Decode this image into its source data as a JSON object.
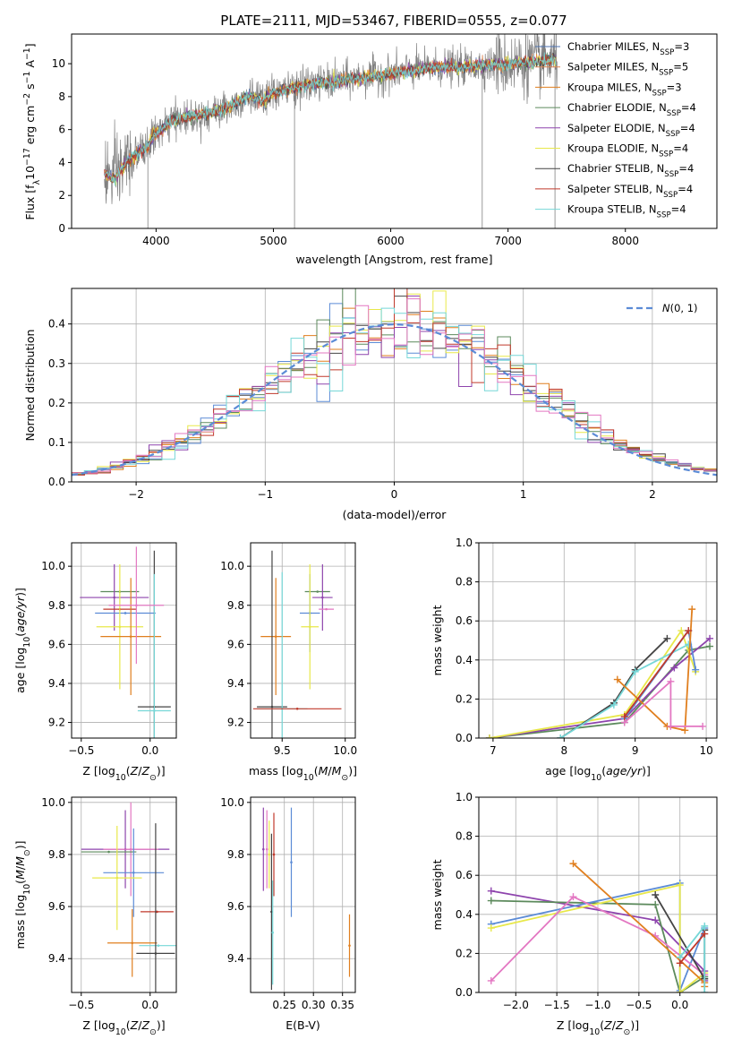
{
  "figure": {
    "title": "PLATE=2111, MJD=53467, FIBERID=0555, z=0.077"
  },
  "chart_data": [
    {
      "id": "spectrum",
      "type": "line",
      "xlabel": "wavelength [Angstrom, rest frame]",
      "ylabel": "Flux [f_λ10^-17 erg cm^-2 s^-1 A^-1]",
      "xlim": [
        3280,
        8780
      ],
      "ylim": [
        0,
        11.8
      ],
      "xticks": [
        4000,
        5000,
        6000,
        7000,
        8000
      ],
      "yticks": [
        0,
        2,
        4,
        6,
        8,
        10
      ],
      "grid": false,
      "legend_position": "top-right",
      "continuum": {
        "x": [
          3560,
          3650,
          3750,
          3850,
          3930,
          3980,
          4050,
          4150,
          4300,
          4450,
          4600,
          4800,
          4900,
          5000,
          5200,
          5400,
          5600,
          5800,
          6000,
          6200,
          6400,
          6600,
          6800,
          7000,
          7200,
          7350
        ],
        "y": [
          3.4,
          3.0,
          4.0,
          4.6,
          4.9,
          5.7,
          6.0,
          6.6,
          6.8,
          7.0,
          7.3,
          8.1,
          7.7,
          8.2,
          8.6,
          8.8,
          9.0,
          9.2,
          9.4,
          9.6,
          9.8,
          9.8,
          9.9,
          10.0,
          10.1,
          10.2
        ]
      },
      "data_noise_sigma": 0.55,
      "data_spikes": [
        {
          "x": 3930,
          "y": 0
        },
        {
          "x": 5180,
          "y": 0
        },
        {
          "x": 6780,
          "y": 0
        },
        {
          "x": 7400,
          "y": 0
        },
        {
          "x": 7300,
          "y": 11.8
        },
        {
          "x": 7150,
          "y": 11.8
        },
        {
          "x": 6900,
          "y": 11.6
        }
      ],
      "series": [
        {
          "name": "Chabrier MILES",
          "nssp": "3",
          "color": "#4c72b0"
        },
        {
          "name": "Salpeter MILES",
          "nssp": "5",
          "color": "#dd8452"
        },
        {
          "name": "Kroupa MILES",
          "nssp": "3",
          "color": "#e07f1f"
        },
        {
          "name": "Chabrier ELODIE",
          "nssp": "4",
          "color": "#5c8a5c"
        },
        {
          "name": "Salpeter ELODIE",
          "nssp": "4",
          "color": "#8e44ad"
        },
        {
          "name": "Kroupa ELODIE",
          "nssp": "4",
          "color": "#e8e84a"
        },
        {
          "name": "Chabrier STELIB",
          "nssp": "4",
          "color": "#444444"
        },
        {
          "name": "Salpeter STELIB",
          "nssp": "4",
          "color": "#c0392b"
        },
        {
          "name": "Kroupa STELIB",
          "nssp": "4",
          "color": "#76d7d7"
        }
      ]
    },
    {
      "id": "residuals",
      "type": "bar",
      "xlabel": "(data-model)/error",
      "ylabel": "Normed distribution",
      "xlim": [
        -2.5,
        2.5
      ],
      "ylim": [
        0,
        0.49
      ],
      "xticks": [
        -2,
        -1,
        0,
        1,
        2
      ],
      "yticks": [
        0.0,
        0.1,
        0.2,
        0.3,
        0.4
      ],
      "grid": true,
      "legend_position": "top-right",
      "legend_label": "N(0,1)",
      "reference_curve": {
        "name": "N(0,1)",
        "color": "#5b8bd6",
        "mean": 0,
        "sigma": 1
      },
      "bin_width": 0.1,
      "bin_start": -2.5,
      "series_colors": [
        "#5b8bd6",
        "#e07f1f",
        "#5c8a5c",
        "#8e44ad",
        "#e8e84a",
        "#444444",
        "#c0392b",
        "#76d7d7",
        "#e377c2"
      ]
    },
    {
      "id": "age_vs_Z",
      "type": "scatter",
      "xlabel": "Z [log10(Z/Z_⊙)]",
      "ylabel": "age  [log10(age/yr)]",
      "xlim": [
        -0.57,
        0.19
      ],
      "ylim": [
        9.12,
        10.12
      ],
      "xticks": [
        -0.5,
        0.0
      ],
      "yticks": [
        9.2,
        9.4,
        9.6,
        9.8,
        10.0
      ],
      "grid": true,
      "points": [
        {
          "x": -0.22,
          "y": 9.87,
          "xerr": 0.14,
          "yerr": 0.0,
          "color": "#5c8a5c"
        },
        {
          "x": -0.26,
          "y": 9.84,
          "xerr": 0.25,
          "yerr": 0.17,
          "color": "#8e44ad"
        },
        {
          "x": -0.22,
          "y": 9.78,
          "xerr": 0.12,
          "yerr": 0.0,
          "color": "#c0392b"
        },
        {
          "x": -0.18,
          "y": 9.76,
          "xerr": 0.22,
          "yerr": 0.0,
          "color": "#5b8bd6"
        },
        {
          "x": -0.22,
          "y": 9.69,
          "xerr": 0.17,
          "yerr": 0.32,
          "color": "#e8e84a"
        },
        {
          "x": -0.14,
          "y": 9.64,
          "xerr": 0.22,
          "yerr": 0.3,
          "color": "#e07f1f"
        },
        {
          "x": 0.03,
          "y": 9.28,
          "xerr": 0.12,
          "yerr": 0.8,
          "color": "#444444"
        },
        {
          "x": 0.03,
          "y": 9.26,
          "xerr": 0.12,
          "yerr": 0.7,
          "color": "#76d7d7"
        },
        {
          "x": -0.1,
          "y": 9.8,
          "xerr": 0.2,
          "yerr": 0.3,
          "color": "#e377c2"
        }
      ]
    },
    {
      "id": "age_vs_mass",
      "type": "scatter",
      "xlabel": "mass [log10(M/M_⊙)]",
      "ylabel": "",
      "xlim": [
        9.25,
        10.08
      ],
      "ylim": [
        9.12,
        10.12
      ],
      "xticks": [
        9.5,
        10.0
      ],
      "yticks": [
        9.2,
        9.4,
        9.6,
        9.8,
        10.0
      ],
      "grid": true,
      "points": [
        {
          "x": 9.78,
          "y": 9.87,
          "xerr": 0.1,
          "yerr": 0.0,
          "color": "#5c8a5c"
        },
        {
          "x": 9.82,
          "y": 9.84,
          "xerr": 0.08,
          "yerr": 0.17,
          "color": "#8e44ad"
        },
        {
          "x": 9.85,
          "y": 9.78,
          "xerr": 0.06,
          "yerr": 0.0,
          "color": "#e377c2"
        },
        {
          "x": 9.72,
          "y": 9.76,
          "xerr": 0.08,
          "yerr": 0.2,
          "color": "#5b8bd6"
        },
        {
          "x": 9.72,
          "y": 9.69,
          "xerr": 0.07,
          "yerr": 0.32,
          "color": "#e8e84a"
        },
        {
          "x": 9.45,
          "y": 9.64,
          "xerr": 0.12,
          "yerr": 0.3,
          "color": "#e07f1f"
        },
        {
          "x": 9.42,
          "y": 9.28,
          "xerr": 0.12,
          "yerr": 0.8,
          "color": "#444444"
        },
        {
          "x": 9.5,
          "y": 9.27,
          "xerr": 0.2,
          "yerr": 0.7,
          "color": "#76d7d7"
        },
        {
          "x": 9.62,
          "y": 9.27,
          "xerr": 0.35,
          "yerr": 0.0,
          "color": "#c0392b"
        }
      ]
    },
    {
      "id": "weight_vs_age",
      "type": "line",
      "xlabel": "age  [log10(age/yr)]",
      "ylabel": "mass weight",
      "xlim": [
        6.8,
        10.15
      ],
      "ylim": [
        0,
        1.0
      ],
      "xticks": [
        7,
        8,
        9,
        10
      ],
      "yticks": [
        0.0,
        0.2,
        0.4,
        0.6,
        0.8,
        1.0
      ],
      "grid": true,
      "series": [
        {
          "color": "#5c8a5c",
          "x": [
            6.95,
            8.85,
            9.75,
            10.05
          ],
          "y": [
            0.0,
            0.08,
            0.45,
            0.47
          ]
        },
        {
          "color": "#8e44ad",
          "x": [
            6.95,
            8.85,
            9.55,
            10.05
          ],
          "y": [
            0.0,
            0.1,
            0.36,
            0.51
          ]
        },
        {
          "color": "#e8e84a",
          "x": [
            6.95,
            8.85,
            9.65,
            9.85
          ],
          "y": [
            0.0,
            0.12,
            0.55,
            0.34
          ]
        },
        {
          "color": "#444444",
          "x": [
            7.95,
            8.7,
            9.0,
            9.45
          ],
          "y": [
            0.0,
            0.18,
            0.35,
            0.51
          ]
        },
        {
          "color": "#76d7d7",
          "x": [
            7.95,
            8.7,
            9.0,
            9.75
          ],
          "y": [
            0.0,
            0.17,
            0.34,
            0.48
          ]
        },
        {
          "color": "#5b8bd6",
          "x": [
            8.85,
            9.75,
            9.85
          ],
          "y": [
            0.1,
            0.55,
            0.35
          ]
        },
        {
          "color": "#e07f1f",
          "x": [
            8.75,
            9.45,
            9.7,
            9.8
          ],
          "y": [
            0.3,
            0.06,
            0.04,
            0.66
          ]
        },
        {
          "color": "#e377c2",
          "x": [
            8.85,
            9.5,
            9.5,
            9.95
          ],
          "y": [
            0.08,
            0.29,
            0.06,
            0.06
          ]
        },
        {
          "color": "#c0392b",
          "x": [
            8.85,
            9.75
          ],
          "y": [
            0.11,
            0.55
          ]
        }
      ]
    },
    {
      "id": "mass_vs_Z",
      "type": "scatter",
      "xlabel": "Z [log10(Z/Z_⊙)]",
      "ylabel": "mass [log10(M/M_⊙)]",
      "xlim": [
        -0.57,
        0.19
      ],
      "ylim": [
        9.27,
        10.02
      ],
      "xticks": [
        -0.5,
        0.0
      ],
      "yticks": [
        9.4,
        9.6,
        9.8,
        10.0
      ],
      "grid": true,
      "points": [
        {
          "x": -0.18,
          "y": 9.82,
          "xerr": 0.32,
          "yerr": 0.15,
          "color": "#8e44ad"
        },
        {
          "x": -0.14,
          "y": 9.82,
          "xerr": 0.2,
          "yerr": 0.18,
          "color": "#e377c2"
        },
        {
          "x": -0.3,
          "y": 9.81,
          "xerr": 0.2,
          "yerr": 0.0,
          "color": "#5c8a5c"
        },
        {
          "x": -0.12,
          "y": 9.73,
          "xerr": 0.22,
          "yerr": 0.17,
          "color": "#5b8bd6"
        },
        {
          "x": -0.24,
          "y": 9.71,
          "xerr": 0.18,
          "yerr": 0.2,
          "color": "#e8e84a"
        },
        {
          "x": 0.05,
          "y": 9.58,
          "xerr": 0.12,
          "yerr": 0.0,
          "color": "#c0392b"
        },
        {
          "x": -0.13,
          "y": 9.46,
          "xerr": 0.18,
          "yerr": 0.13,
          "color": "#e07f1f"
        },
        {
          "x": 0.06,
          "y": 9.45,
          "xerr": 0.14,
          "yerr": 0.0,
          "color": "#76d7d7"
        },
        {
          "x": 0.04,
          "y": 9.42,
          "xerr": 0.14,
          "yerr": 0.5,
          "color": "#444444"
        }
      ]
    },
    {
      "id": "mass_vs_EBV",
      "type": "scatter",
      "xlabel": "E(B-V)",
      "ylabel": "",
      "xlim": [
        0.192,
        0.372
      ],
      "ylim": [
        9.27,
        10.02
      ],
      "xticks": [
        0.25,
        0.3,
        0.35
      ],
      "yticks": [
        9.4,
        9.6,
        9.8,
        10.0
      ],
      "grid": true,
      "points": [
        {
          "x": 0.214,
          "y": 9.82,
          "yerr": 0.16,
          "color": "#8e44ad"
        },
        {
          "x": 0.22,
          "y": 9.82,
          "yerr": 0.15,
          "color": "#e377c2"
        },
        {
          "x": 0.224,
          "y": 9.8,
          "yerr": 0.13,
          "color": "#e8e84a"
        },
        {
          "x": 0.232,
          "y": 9.8,
          "yerr": 0.16,
          "color": "#c0392b"
        },
        {
          "x": 0.228,
          "y": 9.58,
          "yerr": 0.3,
          "color": "#444444"
        },
        {
          "x": 0.23,
          "y": 9.5,
          "yerr": 0.2,
          "color": "#76d7d7"
        },
        {
          "x": 0.262,
          "y": 9.77,
          "yerr": 0.21,
          "color": "#5b8bd6"
        },
        {
          "x": 0.362,
          "y": 9.45,
          "yerr": 0.12,
          "color": "#e07f1f"
        }
      ]
    },
    {
      "id": "weight_vs_Z",
      "type": "line",
      "xlabel": "Z [log10(Z/Z_⊙)]",
      "ylabel": "mass weight",
      "xlim": [
        -2.45,
        0.45
      ],
      "ylim": [
        0,
        1.0
      ],
      "xticks": [
        -2.0,
        -1.5,
        -1.0,
        -0.5,
        0.0
      ],
      "yticks": [
        0.0,
        0.2,
        0.4,
        0.6,
        0.8,
        1.0
      ],
      "grid": true,
      "series": [
        {
          "color": "#8e44ad",
          "x": [
            -2.3,
            -0.3,
            0.3,
            0.3
          ],
          "y": [
            0.52,
            0.37,
            0.11,
            0.06
          ]
        },
        {
          "color": "#5c8a5c",
          "x": [
            -2.3,
            -0.3,
            0.0,
            0.3
          ],
          "y": [
            0.47,
            0.45,
            0.0,
            0.08
          ]
        },
        {
          "color": "#5b8bd6",
          "x": [
            -2.3,
            0.0,
            0.0,
            0.3
          ],
          "y": [
            0.35,
            0.56,
            0.01,
            0.33
          ]
        },
        {
          "color": "#e8e84a",
          "x": [
            -2.3,
            0.0,
            0.0,
            0.3
          ],
          "y": [
            0.33,
            0.55,
            0.0,
            0.1
          ]
        },
        {
          "color": "#e377c2",
          "x": [
            -2.3,
            -1.3,
            -0.3,
            0.3
          ],
          "y": [
            0.06,
            0.49,
            0.29,
            0.09
          ]
        },
        {
          "color": "#e07f1f",
          "x": [
            -1.3,
            0.3,
            0.3
          ],
          "y": [
            0.66,
            0.05,
            0.03
          ]
        },
        {
          "color": "#444444",
          "x": [
            -0.3,
            0.3,
            0.3
          ],
          "y": [
            0.5,
            0.07,
            0.32
          ]
        },
        {
          "color": "#76d7d7",
          "x": [
            0.0,
            0.3,
            0.3
          ],
          "y": [
            0.18,
            0.34,
            0.0
          ]
        },
        {
          "color": "#c0392b",
          "x": [
            0.0,
            0.3
          ],
          "y": [
            0.15,
            0.3
          ]
        }
      ]
    }
  ]
}
